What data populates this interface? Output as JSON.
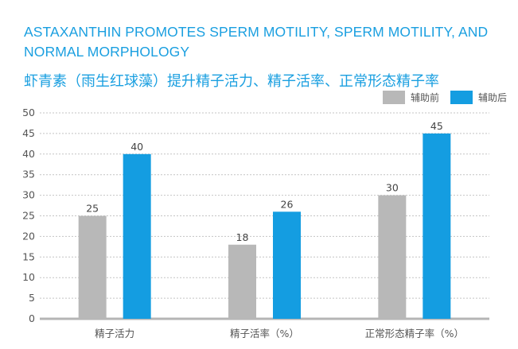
{
  "title_en": "ASTAXANTHIN PROMOTES SPERM MOTILITY, SPERM MOTILITY, AND NORMAL MORPHOLOGY",
  "title_cn": "虾青素（雨生红球藻）提升精子活力、精子活率、正常形态精子率",
  "chart_data": {
    "type": "bar",
    "categories": [
      "精子活力",
      "精子活率（%）",
      "正常形态精子率（%）"
    ],
    "series": [
      {
        "name": "辅助前",
        "values": [
          25,
          18,
          30
        ],
        "color": "#b8b8b8"
      },
      {
        "name": "辅助后",
        "values": [
          40,
          26,
          45
        ],
        "color": "#149de1"
      }
    ],
    "data_labels": [
      [
        "25",
        "18",
        "30"
      ],
      [
        "40",
        "26",
        "45"
      ]
    ],
    "ylim": [
      0,
      50
    ],
    "yticks": [
      0,
      5,
      10,
      15,
      20,
      25,
      30,
      35,
      40,
      45,
      50
    ],
    "grid": true,
    "legend_position": "top-right"
  }
}
